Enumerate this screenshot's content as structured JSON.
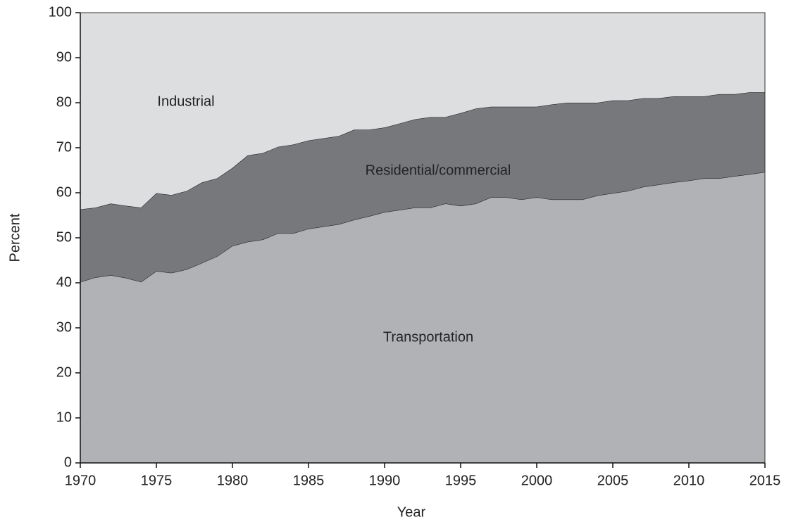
{
  "chart_data": {
    "type": "stacked_area",
    "x_label": "Year",
    "y_label": "Percent",
    "x": [
      1970,
      1971,
      1972,
      1973,
      1974,
      1975,
      1976,
      1977,
      1978,
      1979,
      1980,
      1981,
      1982,
      1983,
      1984,
      1985,
      1986,
      1987,
      1988,
      1989,
      1990,
      1991,
      1992,
      1993,
      1994,
      1995,
      1996,
      1997,
      1998,
      1999,
      2000,
      2001,
      2002,
      2003,
      2004,
      2005,
      2006,
      2007,
      2008,
      2009,
      2010,
      2011,
      2012,
      2013,
      2014,
      2015
    ],
    "series": [
      {
        "name": "Transportation",
        "color": "#b1b2b6",
        "values": [
          40.2,
          41.2,
          41.7,
          41.1,
          40.2,
          42.6,
          42.2,
          43.0,
          44.4,
          45.9,
          48.2,
          49.1,
          49.6,
          51.0,
          51.0,
          52.0,
          52.5,
          53.0,
          54.0,
          54.8,
          55.7,
          56.2,
          56.7,
          56.7,
          57.6,
          57.1,
          57.6,
          59.0,
          59.0,
          58.5,
          59.0,
          58.5,
          58.5,
          58.5,
          59.4,
          59.9,
          60.4,
          61.3,
          61.8,
          62.3,
          62.7,
          63.2,
          63.2,
          63.7,
          64.1,
          64.6
        ]
      },
      {
        "name": "Residential/commercial",
        "color": "#77787c",
        "values": [
          16.1,
          15.5,
          15.9,
          16.0,
          16.5,
          17.3,
          17.3,
          17.4,
          17.9,
          17.3,
          17.3,
          19.2,
          19.2,
          19.2,
          19.7,
          19.6,
          19.6,
          19.6,
          20.0,
          19.2,
          18.8,
          19.2,
          19.6,
          20.1,
          19.2,
          20.6,
          21.1,
          20.1,
          20.1,
          20.6,
          20.1,
          21.1,
          21.5,
          21.5,
          20.6,
          20.6,
          20.1,
          19.7,
          19.2,
          19.1,
          18.7,
          18.2,
          18.7,
          18.2,
          18.2,
          17.7
        ]
      },
      {
        "name": "Industrial",
        "color": "#dddee0",
        "values": [
          43.7,
          43.3,
          42.4,
          42.9,
          43.3,
          40.1,
          40.5,
          39.6,
          37.7,
          36.8,
          34.5,
          31.7,
          31.2,
          29.8,
          29.3,
          28.4,
          27.9,
          27.4,
          26.0,
          26.0,
          25.5,
          24.6,
          23.7,
          23.2,
          23.2,
          22.3,
          21.3,
          20.9,
          20.9,
          20.9,
          20.9,
          20.4,
          20.0,
          20.0,
          20.0,
          19.5,
          19.5,
          19.0,
          19.0,
          18.6,
          18.6,
          18.6,
          18.1,
          18.1,
          17.7,
          17.7
        ]
      }
    ],
    "xlim": [
      1970,
      2015
    ],
    "xticks": [
      1970,
      1975,
      1980,
      1985,
      1990,
      1995,
      2000,
      2005,
      2010,
      2015
    ],
    "ylim": [
      0,
      100
    ],
    "yticks": [
      0,
      10,
      20,
      30,
      40,
      50,
      60,
      70,
      80,
      90,
      100
    ]
  }
}
